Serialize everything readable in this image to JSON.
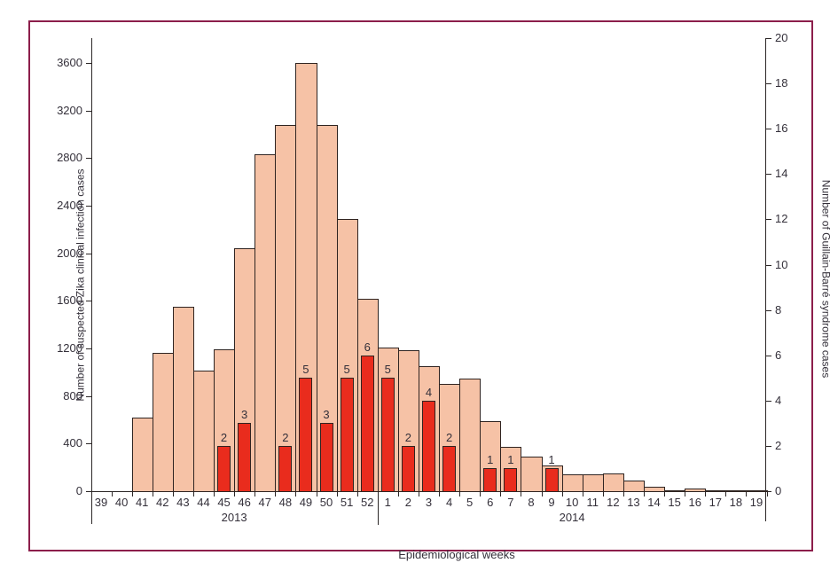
{
  "figure": {
    "frame_color": "#8c1e4b",
    "background": "#ffffff",
    "text_color": "#34303a"
  },
  "chart_data": {
    "type": "bar",
    "title": "",
    "xlabel": "Epidemiological weeks",
    "legend": "none",
    "grid": false,
    "y_left": {
      "label": "Number of suspected Zika clinical infection cases",
      "ticks": [
        0,
        400,
        800,
        1200,
        1600,
        2000,
        2400,
        2800,
        3200,
        3600
      ],
      "range_shown": [
        0,
        3810
      ]
    },
    "y_right": {
      "label": "Number of Guillain-Barré syndrome cases",
      "ticks": [
        0,
        2,
        4,
        6,
        8,
        10,
        12,
        14,
        16,
        18,
        20
      ],
      "range_shown": [
        0,
        20
      ]
    },
    "x_axis": {
      "groups": [
        {
          "year": "2013",
          "weeks": [
            "39",
            "40",
            "41",
            "42",
            "43",
            "44",
            "45",
            "46",
            "47",
            "48",
            "49",
            "50",
            "51",
            "52"
          ]
        },
        {
          "year": "2014",
          "weeks": [
            "1",
            "2",
            "3",
            "4",
            "5",
            "6",
            "7",
            "8",
            "9",
            "10",
            "11",
            "12",
            "13",
            "14",
            "15",
            "16",
            "17",
            "18",
            "19"
          ]
        }
      ]
    },
    "series": [
      {
        "name": "Number of suspected Zika clinical infection cases",
        "axis": "left",
        "color": "#f6c2a6",
        "values": [
          0,
          0,
          620,
          1160,
          1550,
          1010,
          1190,
          2040,
          2830,
          3080,
          3600,
          3080,
          2290,
          1620,
          1210,
          1185,
          1050,
          900,
          950,
          590,
          375,
          290,
          215,
          140,
          140,
          150,
          90,
          40,
          10,
          25,
          10,
          10,
          10
        ]
      },
      {
        "name": "Number of Guillain-Barré syndrome cases",
        "axis": "right",
        "color": "#e92c1d",
        "show_value_labels": true,
        "values": [
          0,
          0,
          0,
          0,
          0,
          0,
          2,
          3,
          0,
          2,
          5,
          3,
          5,
          6,
          5,
          2,
          4,
          2,
          0,
          1,
          1,
          0,
          1,
          0,
          0,
          0,
          0,
          0,
          0,
          0,
          0,
          0,
          0
        ]
      }
    ]
  }
}
